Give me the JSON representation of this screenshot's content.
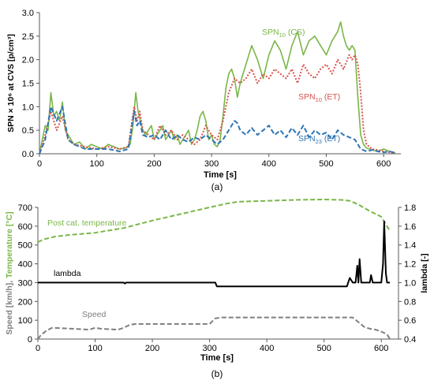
{
  "chart_data": [
    {
      "panel": "a",
      "panel_label": "(a)",
      "type": "line",
      "xlabel": "Time [s]",
      "ylabel": "SPN × 10⁶ at CVS [p/cm³]",
      "xlim": [
        0,
        630
      ],
      "ylim": [
        0,
        3.0
      ],
      "xticks": [
        "0",
        "100",
        "200",
        "300",
        "400",
        "500",
        "600"
      ],
      "yticks": [
        "0.0",
        "0.5",
        "1.0",
        "1.5",
        "2.0",
        "2.5",
        "3.0"
      ],
      "grid": false,
      "annotations": [
        {
          "base": "SPN",
          "sub": "10",
          "suffix": " (CS)",
          "color": "#7ab648"
        },
        {
          "base": "SPN",
          "sub": "10",
          "suffix": " (ET)",
          "color": "#d9534f"
        },
        {
          "base": "SPN",
          "sub": "23",
          "suffix": " (ET)",
          "color": "#2e75b6"
        }
      ],
      "series": [
        {
          "name": "SPN10 (CS)",
          "color": "#7ab648",
          "style": "solid",
          "x": [
            0,
            5,
            10,
            15,
            20,
            25,
            30,
            35,
            40,
            45,
            50,
            60,
            70,
            80,
            90,
            100,
            110,
            120,
            130,
            140,
            150,
            158,
            163,
            168,
            172,
            176,
            180,
            185,
            190,
            195,
            200,
            205,
            210,
            215,
            220,
            225,
            230,
            235,
            240,
            245,
            250,
            255,
            260,
            265,
            270,
            275,
            280,
            285,
            290,
            295,
            300,
            305,
            310,
            315,
            320,
            325,
            330,
            335,
            340,
            345,
            350,
            360,
            370,
            380,
            390,
            400,
            410,
            420,
            430,
            440,
            450,
            460,
            470,
            480,
            490,
            500,
            510,
            520,
            525,
            530,
            535,
            540,
            545,
            550,
            555,
            560,
            565,
            570,
            580,
            590,
            600,
            610,
            620
          ],
          "values": [
            0,
            0.3,
            0.6,
            0.5,
            1.3,
            0.8,
            0.9,
            0.7,
            1.1,
            0.5,
            0.4,
            0.2,
            0.25,
            0.1,
            0.2,
            0.15,
            0.1,
            0.2,
            0.15,
            0.1,
            0.12,
            0.2,
            0.6,
            1.3,
            0.9,
            0.7,
            0.5,
            0.4,
            0.5,
            0.6,
            0.3,
            0.4,
            0.5,
            0.6,
            0.3,
            0.4,
            0.5,
            0.3,
            0.4,
            0.2,
            0.3,
            0.4,
            0.5,
            0.2,
            0.3,
            0.5,
            0.8,
            0.9,
            0.7,
            0.3,
            0.4,
            0.2,
            0.15,
            0.3,
            0.8,
            1.4,
            1.7,
            1.8,
            1.6,
            1.2,
            1.5,
            1.9,
            2.3,
            2.0,
            1.6,
            2.1,
            2.4,
            2.2,
            1.8,
            2.3,
            2.6,
            2.1,
            2.4,
            2.5,
            2.3,
            2.1,
            2.4,
            2.6,
            2.8,
            2.5,
            2.3,
            2.2,
            2.3,
            2.2,
            1.2,
            0.4,
            0.2,
            0.12,
            0.08,
            0.05,
            0.1,
            0.05,
            0.02
          ]
        },
        {
          "name": "SPN10 (ET)",
          "color": "#d9534f",
          "style": "dotted",
          "x": [
            0,
            10,
            20,
            30,
            40,
            50,
            60,
            80,
            100,
            120,
            140,
            155,
            165,
            170,
            175,
            180,
            190,
            200,
            210,
            220,
            230,
            240,
            250,
            260,
            270,
            280,
            290,
            300,
            310,
            320,
            330,
            340,
            350,
            360,
            370,
            380,
            390,
            400,
            410,
            420,
            430,
            440,
            450,
            460,
            470,
            480,
            490,
            500,
            510,
            520,
            530,
            540,
            545,
            550,
            555,
            560,
            565,
            570,
            580,
            590,
            600,
            610,
            620
          ],
          "values": [
            0,
            0.4,
            0.9,
            0.5,
            0.8,
            0.3,
            0.2,
            0.15,
            0.1,
            0.15,
            0.1,
            0.15,
            1.0,
            0.7,
            0.9,
            0.5,
            0.4,
            0.3,
            0.6,
            0.4,
            0.5,
            0.3,
            0.4,
            0.3,
            0.2,
            0.3,
            0.6,
            0.4,
            0.3,
            0.7,
            1.3,
            1.6,
            1.5,
            1.6,
            1.8,
            1.5,
            1.7,
            1.6,
            1.8,
            1.7,
            1.6,
            1.8,
            1.5,
            1.9,
            1.7,
            1.6,
            1.8,
            1.9,
            1.7,
            2.0,
            1.8,
            2.1,
            2.0,
            2.1,
            1.9,
            1.3,
            0.5,
            0.2,
            0.1,
            0.08,
            0.05,
            0.03,
            0.02
          ]
        },
        {
          "name": "SPN23 (ET)",
          "color": "#2e75b6",
          "style": "dashed",
          "x": [
            0,
            10,
            20,
            30,
            40,
            50,
            60,
            80,
            100,
            120,
            140,
            155,
            165,
            170,
            175,
            180,
            190,
            200,
            210,
            220,
            230,
            240,
            250,
            260,
            270,
            280,
            290,
            300,
            310,
            320,
            330,
            340,
            345,
            350,
            360,
            370,
            380,
            390,
            400,
            410,
            420,
            430,
            440,
            450,
            460,
            470,
            480,
            490,
            500,
            510,
            520,
            530,
            540,
            550,
            555,
            560,
            570,
            580,
            590,
            600,
            610,
            620
          ],
          "values": [
            0,
            0.3,
            1.0,
            0.7,
            1.0,
            0.3,
            0.2,
            0.1,
            0.1,
            0.1,
            0.05,
            0.1,
            0.9,
            0.6,
            0.7,
            0.4,
            0.35,
            0.4,
            0.3,
            0.5,
            0.3,
            0.4,
            0.3,
            0.25,
            0.35,
            0.3,
            0.4,
            0.3,
            0.2,
            0.3,
            0.5,
            0.7,
            0.65,
            0.5,
            0.4,
            0.55,
            0.4,
            0.5,
            0.6,
            0.4,
            0.5,
            0.35,
            0.55,
            0.4,
            0.6,
            0.35,
            0.5,
            0.4,
            0.45,
            0.3,
            0.5,
            0.4,
            0.35,
            0.3,
            0.2,
            0.1,
            0.05,
            0.08,
            0.05,
            0.03,
            0.05,
            0.02
          ]
        }
      ]
    },
    {
      "panel": "b",
      "panel_label": "(b)",
      "type": "line",
      "xlabel": "Time [s]",
      "ylabel_left_parts": [
        {
          "text": "Speed [km/h], ",
          "color": "#7f7f7f"
        },
        {
          "text": "Temperature",
          "color": "#7ab648"
        },
        {
          "text": " [°C]",
          "color": "#7ab648"
        }
      ],
      "ylabel_right": "lambda [-]",
      "xlim": [
        0,
        630
      ],
      "ylim_left": [
        0,
        700
      ],
      "ylim_right": [
        0.4,
        1.8
      ],
      "xticks": [
        "0",
        "100",
        "200",
        "300",
        "400",
        "500",
        "600"
      ],
      "yticks_left": [
        "0",
        "100",
        "200",
        "300",
        "400",
        "500",
        "600",
        "700"
      ],
      "yticks_right": [
        "0.4",
        "0.6",
        "0.8",
        "1.0",
        "1.2",
        "1.4",
        "1.6",
        "1.8"
      ],
      "grid": false,
      "annotations": [
        {
          "text": "Post cat. temperature",
          "color": "#7ab648"
        },
        {
          "text": "lambda",
          "color": "#000000"
        },
        {
          "text": "Speed",
          "color": "#7f7f7f"
        }
      ],
      "series": [
        {
          "name": "Post cat. temperature",
          "axis": "left",
          "color": "#7ab648",
          "style": "dashed",
          "x": [
            0,
            10,
            30,
            60,
            100,
            150,
            200,
            250,
            300,
            330,
            350,
            400,
            450,
            500,
            530,
            545,
            560,
            580,
            600,
            615
          ],
          "values": [
            515,
            530,
            545,
            555,
            565,
            590,
            630,
            665,
            700,
            720,
            730,
            735,
            740,
            742,
            740,
            735,
            715,
            680,
            650,
            575
          ]
        },
        {
          "name": "lambda",
          "axis": "right",
          "color": "#000000",
          "style": "solid",
          "x": [
            0,
            150,
            152,
            154,
            160,
            300,
            310,
            312,
            313,
            400,
            500,
            540,
            542,
            545,
            550,
            555,
            558,
            560,
            562,
            565,
            567,
            570,
            575,
            580,
            582,
            585,
            590,
            600,
            603,
            605,
            608,
            610,
            615
          ],
          "values": [
            1.0,
            1.0,
            0.99,
            1.0,
            1.0,
            1.0,
            1.0,
            0.97,
            0.96,
            0.96,
            0.96,
            0.96,
            1.0,
            1.05,
            1.0,
            1.0,
            1.18,
            1.0,
            1.25,
            1.0,
            1.0,
            1.0,
            1.0,
            1.0,
            1.08,
            1.0,
            1.0,
            1.0,
            1.2,
            1.65,
            1.1,
            1.0,
            1.0
          ]
        },
        {
          "name": "Speed",
          "axis": "left",
          "color": "#7f7f7f",
          "style": "dashed",
          "x": [
            0,
            5,
            15,
            25,
            60,
            90,
            100,
            110,
            140,
            150,
            160,
            170,
            200,
            250,
            300,
            305,
            310,
            320,
            400,
            500,
            550,
            560,
            570,
            580,
            590,
            600,
            610,
            615
          ],
          "values": [
            0,
            20,
            45,
            60,
            55,
            50,
            60,
            55,
            50,
            60,
            75,
            80,
            80,
            80,
            80,
            95,
            110,
            115,
            115,
            115,
            115,
            90,
            65,
            55,
            50,
            40,
            25,
            0
          ]
        }
      ]
    }
  ]
}
